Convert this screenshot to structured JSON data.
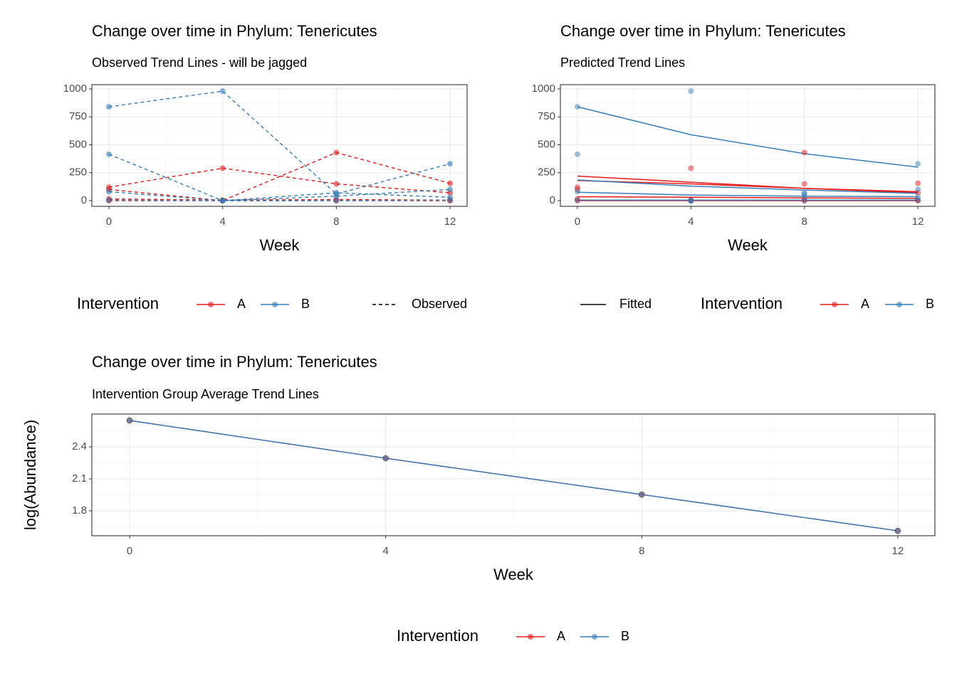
{
  "chart_data": [
    {
      "type": "line",
      "title": "Change over time in Phylum: Tenericutes",
      "subtitle": "Observed Trend Lines - will be jagged",
      "xlabel": "Week",
      "x": [
        0,
        4,
        8,
        12
      ],
      "xlim": [
        -0.6,
        12.6
      ],
      "xticks": [
        0,
        4,
        8,
        12
      ],
      "ylim": [
        -51,
        1038
      ],
      "yticks": [
        0,
        250,
        500,
        750,
        1000
      ],
      "grid": true,
      "linestyle": "dashed",
      "legend_title": "Intervention",
      "linetype_label": "Observed",
      "series": [
        {
          "name": "A",
          "color": "#E41A1C",
          "values": [
            120,
            290,
            150,
            70
          ]
        },
        {
          "name": "A",
          "color": "#E41A1C",
          "values": [
            100,
            0,
            430,
            155
          ]
        },
        {
          "name": "A",
          "color": "#E41A1C",
          "values": [
            15,
            5,
            10,
            5
          ]
        },
        {
          "name": "A",
          "color": "#E41A1C",
          "values": [
            0,
            0,
            0,
            0
          ]
        },
        {
          "name": "B",
          "color": "#377EB8",
          "values": [
            840,
            980,
            60,
            330
          ]
        },
        {
          "name": "B",
          "color": "#377EB8",
          "values": [
            415,
            0,
            40,
            100
          ]
        },
        {
          "name": "B",
          "color": "#377EB8",
          "values": [
            80,
            0,
            70,
            30
          ]
        },
        {
          "name": "B",
          "color": "#377EB8",
          "values": [
            5,
            0,
            0,
            5
          ]
        }
      ]
    },
    {
      "type": "line",
      "title": "Change over time in Phylum: Tenericutes",
      "subtitle": "Predicted Trend Lines",
      "xlabel": "Week",
      "x": [
        0,
        4,
        8,
        12
      ],
      "xlim": [
        -0.6,
        12.6
      ],
      "xticks": [
        0,
        4,
        8,
        12
      ],
      "ylim": [
        -51,
        1038
      ],
      "yticks": [
        0,
        250,
        500,
        750,
        1000
      ],
      "grid": true,
      "linestyle": "solid",
      "legend_title": "Intervention",
      "linetype_label": "Fitted",
      "series": [
        {
          "name": "A",
          "color": "#E41A1C",
          "values": [
            120,
            290,
            150,
            70
          ],
          "fitted": [
            220,
            165,
            110,
            70
          ]
        },
        {
          "name": "A",
          "color": "#E41A1C",
          "values": [
            100,
            0,
            430,
            155
          ],
          "fitted": [
            180,
            150,
            110,
            80
          ]
        },
        {
          "name": "A",
          "color": "#E41A1C",
          "values": [
            15,
            5,
            10,
            5
          ],
          "fitted": [
            35,
            30,
            25,
            20
          ]
        },
        {
          "name": "A",
          "color": "#E41A1C",
          "values": [
            0,
            0,
            0,
            0
          ],
          "fitted": [
            0,
            0,
            0,
            0
          ]
        },
        {
          "name": "B",
          "color": "#377EB8",
          "values": [
            840,
            980,
            60,
            330
          ],
          "fitted": [
            840,
            590,
            420,
            300
          ]
        },
        {
          "name": "B",
          "color": "#377EB8",
          "values": [
            415,
            0,
            40,
            100
          ],
          "fitted": [
            185,
            130,
            95,
            65
          ]
        },
        {
          "name": "B",
          "color": "#377EB8",
          "values": [
            80,
            0,
            70,
            30
          ],
          "fitted": [
            75,
            50,
            40,
            35
          ]
        },
        {
          "name": "B",
          "color": "#377EB8",
          "values": [
            5,
            0,
            0,
            5
          ],
          "fitted": [
            5,
            5,
            5,
            5
          ]
        }
      ]
    },
    {
      "type": "line",
      "title": "Change over time in Phylum: Tenericutes",
      "subtitle": "Intervention Group Average Trend Lines",
      "xlabel": "Week",
      "ylabel": "log(Abundance)",
      "x": [
        0,
        4,
        8,
        12
      ],
      "xlim": [
        -0.59,
        12.58
      ],
      "xticks": [
        0,
        4,
        8,
        12
      ],
      "ylim": [
        1.567,
        2.707
      ],
      "yticks": [
        1.8,
        2.1,
        2.4
      ],
      "grid": true,
      "linestyle": "solid",
      "legend_title": "Intervention",
      "series": [
        {
          "name": "A",
          "color": "#E41A1C",
          "values": [
            2.647,
            2.293,
            1.953,
            1.613
          ]
        },
        {
          "name": "B",
          "color": "#377EB8",
          "values": [
            2.647,
            2.293,
            1.953,
            1.613
          ]
        }
      ]
    }
  ]
}
